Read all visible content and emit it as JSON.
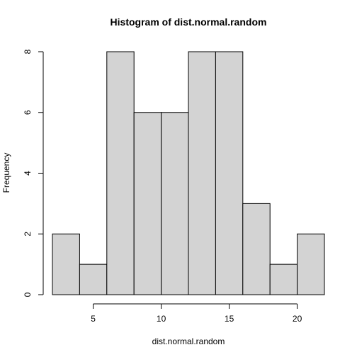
{
  "chart_data": {
    "type": "bar",
    "title": "Histogram of dist.normal.random",
    "xlabel": "dist.normal.random",
    "ylabel": "Frequency",
    "bins": [
      {
        "start": 2,
        "end": 4,
        "count": 2
      },
      {
        "start": 4,
        "end": 6,
        "count": 1
      },
      {
        "start": 6,
        "end": 8,
        "count": 8
      },
      {
        "start": 8,
        "end": 10,
        "count": 6
      },
      {
        "start": 10,
        "end": 12,
        "count": 6
      },
      {
        "start": 12,
        "end": 14,
        "count": 8
      },
      {
        "start": 14,
        "end": 16,
        "count": 8
      },
      {
        "start": 16,
        "end": 18,
        "count": 3
      },
      {
        "start": 18,
        "end": 20,
        "count": 1
      },
      {
        "start": 20,
        "end": 22,
        "count": 2
      }
    ],
    "xlim": [
      2,
      22
    ],
    "ylim": [
      0,
      8
    ],
    "x_ticks": [
      "5",
      "10",
      "15",
      "20"
    ],
    "y_ticks": [
      "0",
      "2",
      "4",
      "6",
      "8"
    ],
    "grid": false,
    "bar_color": "#d3d3d3",
    "edge_color": "#000000"
  }
}
